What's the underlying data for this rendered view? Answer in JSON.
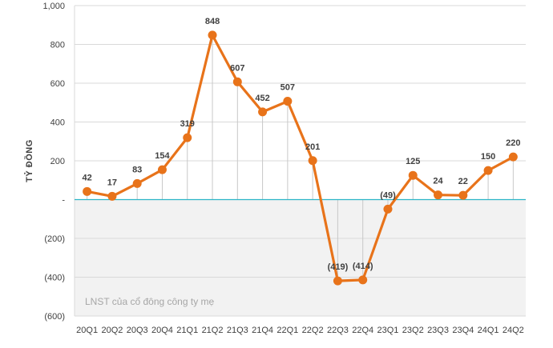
{
  "chart_data": {
    "type": "line",
    "title": "",
    "xlabel": "",
    "ylabel": "TỶ ĐỒNG",
    "annotation": "LNST của cổ đông công ty mẹ",
    "ylim": [
      -600,
      1000
    ],
    "yticks": [
      1000,
      800,
      600,
      400,
      200,
      0,
      -200,
      -400,
      -600
    ],
    "ytick_labels": [
      "1,000",
      "800",
      "600",
      "400",
      "200",
      "-",
      "(200)",
      "(400)",
      "(600)"
    ],
    "categories": [
      "20Q1",
      "20Q2",
      "20Q3",
      "20Q4",
      "21Q1",
      "21Q2",
      "21Q3",
      "21Q4",
      "22Q1",
      "22Q2",
      "22Q3",
      "22Q4",
      "23Q1",
      "23Q2",
      "23Q3",
      "23Q4",
      "24Q1",
      "24Q2"
    ],
    "series": [
      {
        "name": "LNST của cổ đông công ty mẹ",
        "values": [
          42,
          17,
          83,
          154,
          319,
          848,
          607,
          452,
          507,
          201,
          -419,
          -414,
          -49,
          125,
          24,
          22,
          150,
          220
        ],
        "labels": [
          "42",
          "17",
          "83",
          "154",
          "319",
          "848",
          "607",
          "452",
          "507",
          "201",
          "(419)",
          "(414)",
          "(49)",
          "125",
          "24",
          "22",
          "150",
          "220"
        ],
        "color": "#E8731A"
      }
    ],
    "zero_line_color": "#2BB5C8",
    "grid": true
  }
}
